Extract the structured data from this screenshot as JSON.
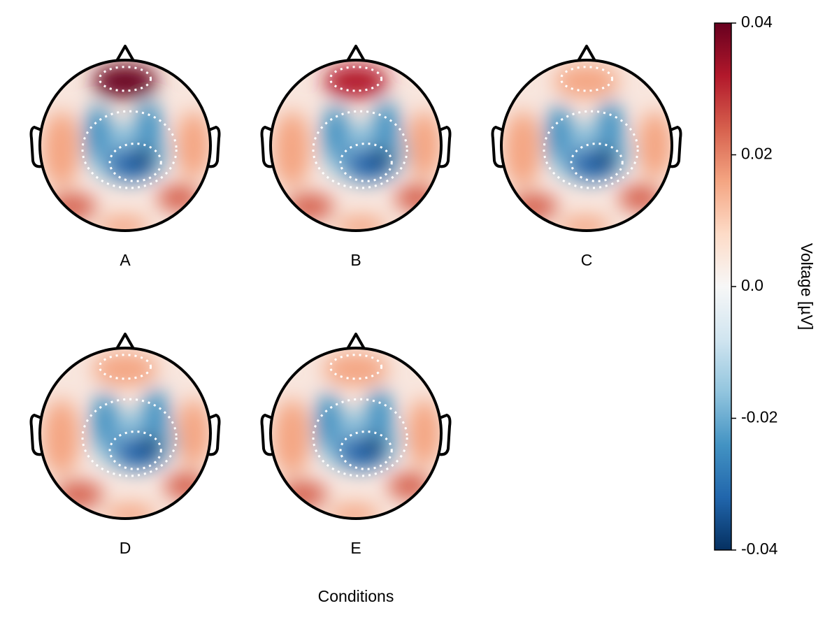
{
  "chart_data": {
    "type": "topoplot",
    "xlabel": "Conditions",
    "panels": [
      "A",
      "B",
      "C",
      "D",
      "E"
    ],
    "colorbar": {
      "label": "Voltage [µV]",
      "clim": [
        -0.04,
        0.04
      ],
      "cticks": [
        0.04,
        0.02,
        {
          "value": 0,
          "label": "0.0"
        },
        -0.02,
        -0.04
      ],
      "colormap": [
        "#053061",
        "#2166ac",
        "#4393c3",
        "#92c5de",
        "#d1e5f0",
        "#f7f7f7",
        "#fddbc7",
        "#f4a582",
        "#d6604d",
        "#b2182b",
        "#67001f"
      ]
    }
  }
}
